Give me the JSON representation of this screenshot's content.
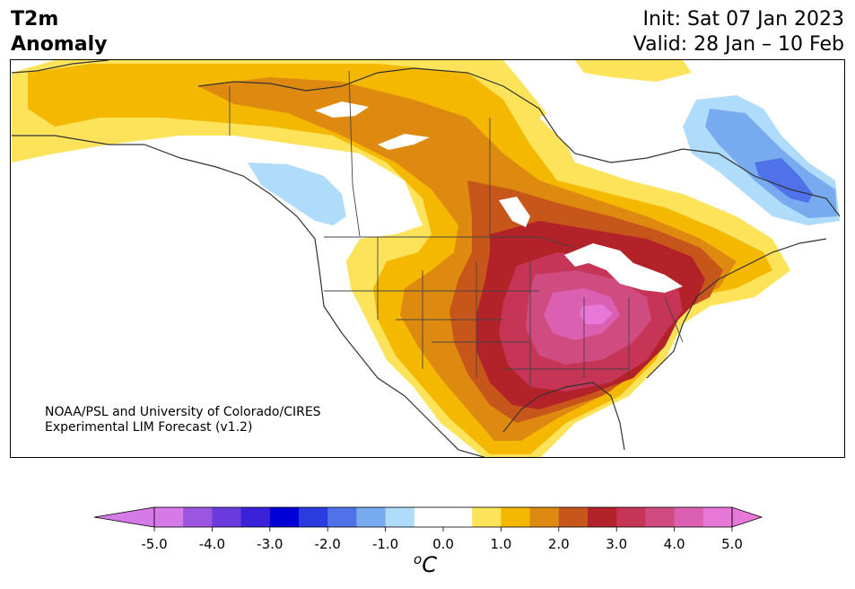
{
  "header": {
    "title_line1": "T2m",
    "title_line2": "Anomaly",
    "init": "Init: Sat 07 Jan 2023",
    "valid": "Valid: 28 Jan – 10 Feb"
  },
  "credit": {
    "line1": "NOAA/PSL and University of Colorado/CIRES",
    "line2": "Experimental LIM Forecast (v1.2)"
  },
  "colorbar": {
    "unit_base": "C",
    "unit_sup": "o",
    "tick_labels": [
      "-5.0",
      "-4.0",
      "-3.0",
      "-2.0",
      "-1.0",
      "0.0",
      "1.0",
      "2.0",
      "3.0",
      "4.0",
      "5.0"
    ],
    "colors": [
      "#d67ae8",
      "#9b55e0",
      "#6a3adc",
      "#3a22d8",
      "#0000d6",
      "#2a3be0",
      "#4f72e8",
      "#78aaf0",
      "#aedcfa",
      "#ffffff",
      "#ffffff",
      "#fde35a",
      "#f4b800",
      "#de8a10",
      "#c7561a",
      "#b32228",
      "#c63456",
      "#cf4b80",
      "#dc60b2",
      "#e778d8"
    ],
    "under_color": "#d67ae8",
    "over_color": "#e778d8"
  },
  "legend_colors": {
    "lightblue": "#aedcfa",
    "midblue": "#78aaf0",
    "blue": "#4f72e8",
    "yellow": "#fde35a",
    "gold": "#f4b800",
    "orange": "#de8a10",
    "darkorange": "#c7561a",
    "red": "#b32228",
    "crimson": "#c63456",
    "rose": "#cf4b80",
    "pink": "#dc60b2",
    "lightpink": "#e778d8"
  }
}
